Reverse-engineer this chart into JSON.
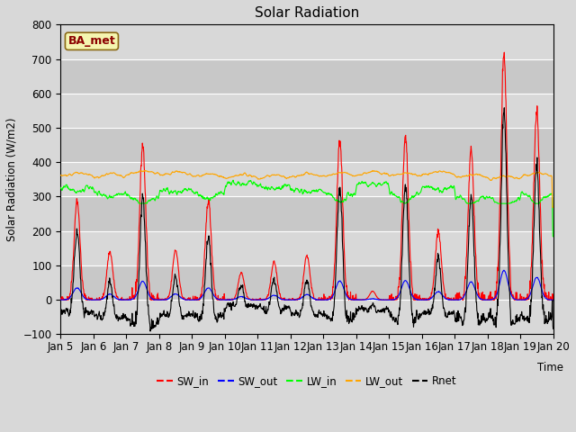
{
  "title": "Solar Radiation",
  "ylabel": "Solar Radiation (W/m2)",
  "xlabel": "Time",
  "ylim": [
    -100,
    800
  ],
  "label_text": "BA_met",
  "series_labels": [
    "SW_in",
    "SW_out",
    "LW_in",
    "LW_out",
    "Rnet"
  ],
  "series_colors": [
    "red",
    "blue",
    "lime",
    "orange",
    "black"
  ],
  "xtick_labels": [
    "Jan 5",
    "Jan 6",
    "Jan 7",
    "Jan 8",
    "Jan 9",
    "Jan 10",
    "Jan 11",
    "Jan 12",
    "Jan 13",
    "Jan 14",
    "Jan 15",
    "Jan 16",
    "Jan 17",
    "Jan 18",
    "Jan 19",
    "Jan 20"
  ],
  "background_color": "#d8d8d8",
  "plot_bg_color": "#d8d8d8",
  "band_color_light": "#e8e8e8",
  "band_color_dark": "#d0d0d0",
  "yticks": [
    -100,
    0,
    100,
    200,
    300,
    400,
    500,
    600,
    700,
    800
  ]
}
